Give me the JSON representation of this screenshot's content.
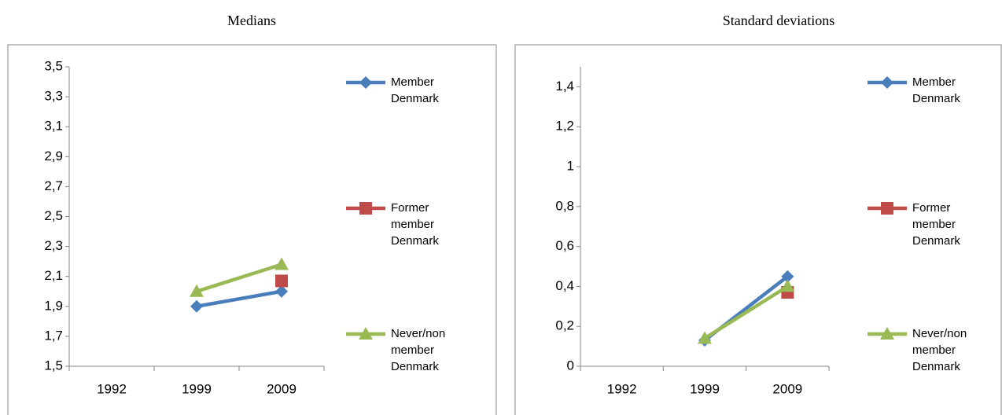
{
  "chart_data": [
    {
      "type": "line",
      "title": "Medians",
      "categories": [
        "1992",
        "1999",
        "2009"
      ],
      "ylim": [
        1.5,
        3.5
      ],
      "yticks": [
        {
          "value": 1.5,
          "label": "1,5"
        },
        {
          "value": 1.7,
          "label": "1,7"
        },
        {
          "value": 1.9,
          "label": "1,9"
        },
        {
          "value": 2.1,
          "label": "2,1"
        },
        {
          "value": 2.3,
          "label": "2,3"
        },
        {
          "value": 2.5,
          "label": "2,5"
        },
        {
          "value": 2.7,
          "label": "2,7"
        },
        {
          "value": 2.9,
          "label": "2,9"
        },
        {
          "value": 3.1,
          "label": "3,1"
        },
        {
          "value": 3.3,
          "label": "3,3"
        },
        {
          "value": 3.5,
          "label": "3,5"
        }
      ],
      "legend_position": "right",
      "series": [
        {
          "name": "Member Denmark",
          "color": "#4a7ebb",
          "marker": "diamond",
          "values": [
            null,
            1.9,
            2.0
          ]
        },
        {
          "name": "Former member Denmark",
          "color": "#be4b48",
          "marker": "square",
          "values": [
            null,
            null,
            2.07
          ]
        },
        {
          "name": "Never/non member Denmark",
          "color": "#98b954",
          "marker": "triangle",
          "values": [
            null,
            2.0,
            2.18
          ]
        }
      ]
    },
    {
      "type": "line",
      "title": "Standard deviations",
      "categories": [
        "1992",
        "1999",
        "2009"
      ],
      "ylim": [
        0,
        1.5
      ],
      "yticks": [
        0,
        {
          "value": 0.2,
          "label": "0,2"
        },
        {
          "value": 0.4,
          "label": "0,4"
        },
        {
          "value": 0.6,
          "label": "0,6"
        },
        {
          "value": 0.8,
          "label": "0,8"
        },
        1,
        {
          "value": 1.2,
          "label": "1,2"
        },
        {
          "value": 1.4,
          "label": "1,4"
        }
      ],
      "legend_position": "right",
      "series": [
        {
          "name": "Member Denmark",
          "color": "#4a7ebb",
          "marker": "diamond",
          "values": [
            null,
            0.13,
            0.45
          ]
        },
        {
          "name": "Former member Denmark",
          "color": "#be4b48",
          "marker": "square",
          "values": [
            null,
            null,
            0.37
          ]
        },
        {
          "name": "Never/non member Denmark",
          "color": "#98b954",
          "marker": "triangle",
          "values": [
            null,
            0.14,
            0.4
          ]
        }
      ]
    }
  ]
}
